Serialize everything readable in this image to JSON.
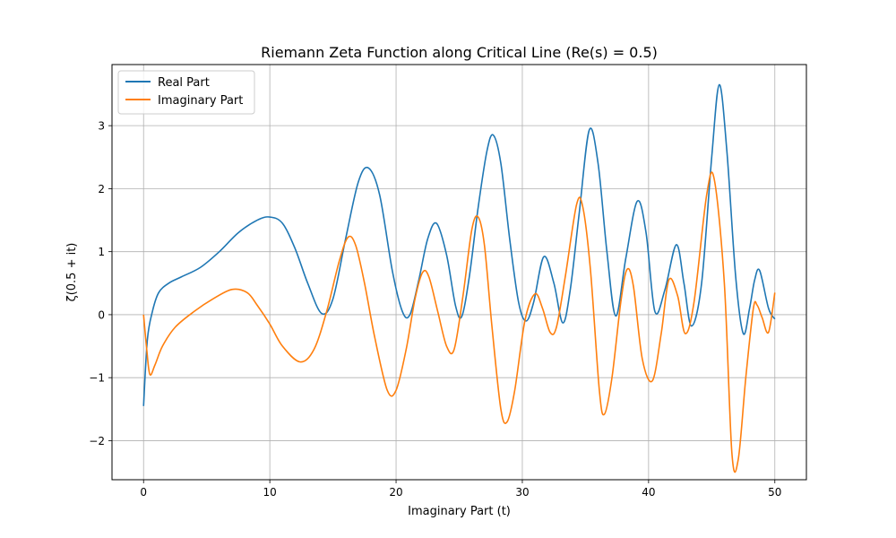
{
  "chart_data": {
    "type": "line",
    "title": "Riemann Zeta Function along Critical Line (Re(s) = 0.5)",
    "xlabel": "Imaginary Part (t)",
    "ylabel": "ζ(0.5 + it)",
    "xlim": [
      -2.5,
      52.5
    ],
    "ylim": [
      -2.62,
      3.97
    ],
    "xticks": [
      0,
      10,
      20,
      30,
      40,
      50
    ],
    "xtick_labels": [
      "0",
      "10",
      "20",
      "30",
      "40",
      "50"
    ],
    "yticks": [
      -2,
      -1,
      0,
      1,
      2,
      3
    ],
    "ytick_labels": [
      "−2",
      "−1",
      "0",
      "1",
      "2",
      "3"
    ],
    "grid": true,
    "legend_position": "upper-left",
    "series": [
      {
        "name": "Real Part",
        "color": "#1f77b4",
        "x": [
          0,
          0.3,
          0.7,
          1.2,
          2,
          3,
          4.5,
          6,
          7.5,
          9,
          10,
          11,
          12,
          13,
          14.1,
          15,
          16,
          17,
          17.8,
          18.7,
          19.7,
          20.5,
          21.1,
          21.8,
          22.5,
          23.2,
          24,
          24.7,
          25.2,
          25.8,
          26.5,
          27.2,
          27.7,
          28.3,
          29,
          29.7,
          30.3,
          30.9,
          31.7,
          32.5,
          33.2,
          33.8,
          34.5,
          35.3,
          36,
          36.7,
          37.4,
          38.2,
          39.1,
          39.8,
          40.5,
          41.3,
          42.2,
          42.8,
          43.4,
          44.2,
          45,
          45.6,
          46.2,
          46.9,
          47.5,
          48,
          48.4,
          48.8,
          49.5,
          50
        ],
        "y": [
          -1.45,
          -0.4,
          0.05,
          0.35,
          0.5,
          0.6,
          0.75,
          1.0,
          1.3,
          1.5,
          1.55,
          1.45,
          1.05,
          0.5,
          0.02,
          0.25,
          1.2,
          2.1,
          2.33,
          1.9,
          0.7,
          0.05,
          0.0,
          0.55,
          1.2,
          1.45,
          0.95,
          0.15,
          -0.03,
          0.6,
          1.7,
          2.6,
          2.85,
          2.4,
          1.2,
          0.2,
          -0.1,
          0.2,
          0.92,
          0.5,
          -0.13,
          0.4,
          1.6,
          2.93,
          2.4,
          1.0,
          -0.02,
          0.9,
          1.8,
          1.3,
          0.05,
          0.4,
          1.11,
          0.5,
          -0.18,
          0.5,
          2.5,
          3.65,
          2.6,
          0.6,
          -0.3,
          0.1,
          0.55,
          0.7,
          0.1,
          -0.07
        ]
      },
      {
        "name": "Imaginary Part",
        "color": "#ff7f0e",
        "x": [
          0,
          0.25,
          0.5,
          0.9,
          1.5,
          2.5,
          4,
          5.5,
          7,
          8.2,
          9,
          10,
          11,
          12.4,
          13.5,
          14.5,
          15.5,
          16.2,
          16.8,
          17.5,
          18.3,
          19.3,
          20,
          20.8,
          21.5,
          22.1,
          22.6,
          23.3,
          24,
          24.6,
          25.3,
          26,
          26.5,
          27,
          27.6,
          28.3,
          28.8,
          29.4,
          30.2,
          31,
          31.6,
          32.2,
          32.7,
          33.4,
          34.3,
          34.8,
          35.4,
          36.1,
          36.5,
          37.1,
          37.8,
          38.3,
          38.8,
          39.5,
          40.3,
          41,
          41.6,
          42.3,
          42.9,
          43.6,
          44.6,
          45.2,
          46,
          46.6,
          47.1,
          47.7,
          48.3,
          48.6,
          49,
          49.5,
          50
        ],
        "y": [
          0.0,
          -0.55,
          -0.95,
          -0.8,
          -0.5,
          -0.2,
          0.05,
          0.25,
          0.4,
          0.35,
          0.15,
          -0.15,
          -0.5,
          -0.75,
          -0.55,
          0.05,
          0.85,
          1.23,
          1.1,
          0.5,
          -0.35,
          -1.2,
          -1.2,
          -0.55,
          0.25,
          0.67,
          0.6,
          0.05,
          -0.5,
          -0.55,
          0.3,
          1.35,
          1.55,
          1.1,
          -0.2,
          -1.5,
          -1.7,
          -1.2,
          -0.1,
          0.33,
          0.1,
          -0.28,
          -0.2,
          0.6,
          1.75,
          1.7,
          0.7,
          -1.2,
          -1.58,
          -1.0,
          0.2,
          0.72,
          0.45,
          -0.7,
          -1.05,
          -0.3,
          0.55,
          0.3,
          -0.3,
          0.2,
          1.9,
          2.15,
          0.5,
          -2.2,
          -2.3,
          -1.0,
          0.1,
          0.15,
          -0.05,
          -0.28,
          0.35
        ]
      }
    ]
  }
}
